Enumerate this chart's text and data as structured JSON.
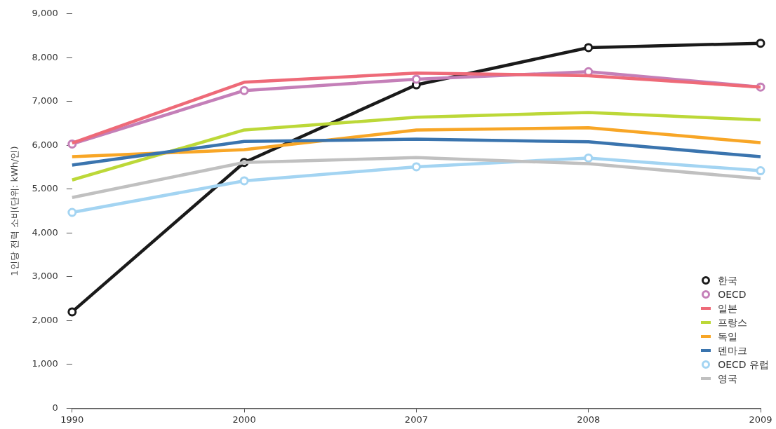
{
  "chart_data": {
    "type": "line",
    "ylabel": "1인당 전력 소비(단위: kWh/인)",
    "categories": [
      "1990",
      "2000",
      "2007",
      "2008",
      "2009"
    ],
    "ylim": [
      0,
      9000
    ],
    "yticks": [
      {
        "value": 0,
        "label": "0"
      },
      {
        "value": 1000,
        "label": "1,000"
      },
      {
        "value": 2000,
        "label": "2,000"
      },
      {
        "value": 3000,
        "label": "3,000"
      },
      {
        "value": 4000,
        "label": "4,000"
      },
      {
        "value": 5000,
        "label": "5,000"
      },
      {
        "value": 6000,
        "label": "6,000"
      },
      {
        "value": 7000,
        "label": "7,000"
      },
      {
        "value": 8000,
        "label": "8,000"
      },
      {
        "value": 9000,
        "label": "9,000"
      }
    ],
    "grid": false,
    "legend": "bottom right",
    "line_style": "solid",
    "series": [
      {
        "name": "한국",
        "color": "#1a1a1a",
        "marker": "circle",
        "values": [
          2200,
          5610,
          7380,
          8230,
          8330
        ]
      },
      {
        "name": "OECD",
        "color": "#c47fb8",
        "marker": "circle",
        "values": [
          6030,
          7250,
          7510,
          7680,
          7330
        ]
      },
      {
        "name": "일본",
        "color": "#ee6a78",
        "marker": "none",
        "values": [
          6050,
          7440,
          7650,
          7590,
          7330
        ]
      },
      {
        "name": "프랑스",
        "color": "#bcd838",
        "marker": "none",
        "values": [
          5210,
          6350,
          6640,
          6750,
          6580
        ]
      },
      {
        "name": "독일",
        "color": "#f8a626",
        "marker": "none",
        "values": [
          5740,
          5900,
          6350,
          6400,
          6060
        ]
      },
      {
        "name": "덴마크",
        "color": "#3a74ae",
        "marker": "none",
        "values": [
          5550,
          6090,
          6140,
          6080,
          5740
        ]
      },
      {
        "name": "OECD 유럽",
        "color": "#a3d4f2",
        "marker": "circle",
        "values": [
          4470,
          5190,
          5510,
          5710,
          5420
        ]
      },
      {
        "name": "영국",
        "color": "#c0c0c0",
        "marker": "none",
        "values": [
          4810,
          5610,
          5720,
          5580,
          5240
        ]
      }
    ]
  }
}
